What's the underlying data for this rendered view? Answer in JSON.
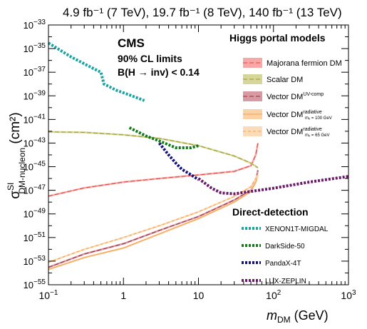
{
  "chart_data": {
    "type": "line",
    "lumi_header": "4.9 fb⁻¹ (7 TeV), 19.7 fb⁻¹ (8 TeV), 140 fb⁻¹ (13 TeV)",
    "experiment": "CMS",
    "subtitle_line1": "90% CL limits",
    "subtitle_line2": "B(H → inv) < 0.14",
    "xlabel": {
      "main": "m",
      "sub": "DM",
      "unit": " (GeV)"
    },
    "ylabel": {
      "main": "σ",
      "sup": "SI",
      "sub": "DM-nucleon",
      "unit": " (cm²)"
    },
    "x_scale": "log",
    "y_scale": "log",
    "xlim": [
      0.1,
      1000
    ],
    "ylim": [
      1e-55,
      1e-33
    ],
    "x_ticks": [
      {
        "value": 0.1,
        "base": "10",
        "exp": "−1"
      },
      {
        "value": 1,
        "base": "1",
        "exp": ""
      },
      {
        "value": 10,
        "base": "10",
        "exp": ""
      },
      {
        "value": 100,
        "base": "10",
        "exp": "2"
      },
      {
        "value": 1000,
        "base": "10",
        "exp": "3"
      }
    ],
    "y_ticks": [
      {
        "value": -55,
        "base": "10",
        "exp": "−55"
      },
      {
        "value": -53,
        "base": "10",
        "exp": "−53"
      },
      {
        "value": -51,
        "base": "10",
        "exp": "−51"
      },
      {
        "value": -49,
        "base": "10",
        "exp": "−49"
      },
      {
        "value": -47,
        "base": "10",
        "exp": "−47"
      },
      {
        "value": -45,
        "base": "10",
        "exp": "−45"
      },
      {
        "value": -43,
        "base": "10",
        "exp": "−43"
      },
      {
        "value": -41,
        "base": "10",
        "exp": "−41"
      },
      {
        "value": -39,
        "base": "10",
        "exp": "−39"
      },
      {
        "value": -37,
        "base": "10",
        "exp": "−37"
      },
      {
        "value": -35,
        "base": "10",
        "exp": "−35"
      },
      {
        "value": -33,
        "base": "10",
        "exp": "−33"
      }
    ],
    "legend_higgs_title": "Higgs portal models",
    "legend_dd_title": "Direct-detection",
    "legend_placement": "right",
    "grid": false,
    "higgs_series": [
      {
        "name": "Majorana fermion DM",
        "name_sup": "",
        "name_sub": "",
        "color": "#e8413c",
        "band": "#f7a8a6",
        "dash": "6,3",
        "points": [
          [
            0.1,
            3.2e-48
          ],
          [
            0.3,
            1.6e-47
          ],
          [
            1,
            5e-47
          ],
          [
            3,
            1e-46
          ],
          [
            10,
            2e-46
          ],
          [
            30,
            4e-46
          ],
          [
            50,
            1.2e-45
          ],
          [
            58,
            1e-44
          ],
          [
            62,
            1e-43
          ]
        ]
      },
      {
        "name": "Scalar DM",
        "name_sup": "",
        "name_sub": "",
        "color": "#9a9a2a",
        "band": "#d6d69a",
        "dash": "6,3",
        "points": [
          [
            0.1,
            9e-43
          ],
          [
            0.3,
            8e-43
          ],
          [
            1,
            5e-43
          ],
          [
            3,
            2.5e-43
          ],
          [
            10,
            6e-44
          ],
          [
            30,
            8e-45
          ],
          [
            50,
            2e-45
          ],
          [
            62,
            8e-46
          ]
        ]
      },
      {
        "name": "Vector DM",
        "name_sup": "UV-comp",
        "name_sub": "",
        "color": "#9b2a3a",
        "band": "#d79aa2",
        "dash": "6,3",
        "points": [
          [
            0.1,
            3e-54
          ],
          [
            0.3,
            4e-53
          ],
          [
            1,
            3e-52
          ],
          [
            3,
            4e-51
          ],
          [
            10,
            6e-50
          ],
          [
            30,
            1.5e-48
          ],
          [
            50,
            1e-47
          ],
          [
            58,
            6e-47
          ],
          [
            62,
            5e-46
          ]
        ]
      },
      {
        "name": "Vector DM",
        "name_sup": "radiative",
        "name_sub": "mₒ = 100 GeV",
        "color": "#f5a04a",
        "band": "#fbd2a6",
        "dash": "",
        "points": [
          [
            0.1,
            2e-54
          ],
          [
            0.3,
            2e-53
          ],
          [
            1,
            1.3e-52
          ],
          [
            3,
            2e-51
          ],
          [
            10,
            4e-50
          ],
          [
            30,
            1e-48
          ],
          [
            50,
            8e-48
          ],
          [
            58,
            5e-47
          ],
          [
            62,
            2e-46
          ]
        ]
      },
      {
        "name": "Vector DM",
        "name_sup": "radiative",
        "name_sub": "mₒ = 65 GeV",
        "color": "#f5a04a",
        "band": "#fcdcb8",
        "dash": "4,3",
        "points": [
          [
            0.1,
            8e-54
          ],
          [
            0.3,
            1e-52
          ],
          [
            1,
            1e-51
          ],
          [
            3,
            1e-50
          ],
          [
            10,
            1.5e-49
          ],
          [
            30,
            3e-48
          ],
          [
            50,
            2e-47
          ],
          [
            58,
            1e-46
          ],
          [
            62,
            2e-46
          ]
        ]
      }
    ],
    "dd_series": [
      {
        "name": "XENON1T-MIGDAL",
        "color": "#1aa3a3",
        "points": [
          [
            0.1,
            3e-35
          ],
          [
            0.2,
            2e-36
          ],
          [
            0.4,
            2e-37
          ],
          [
            0.5,
            1e-37
          ],
          [
            0.55,
            1e-38
          ],
          [
            0.8,
            3e-39
          ],
          [
            1.2,
            1.2e-39
          ],
          [
            1.9,
            4e-40
          ]
        ]
      },
      {
        "name": "DarkSide-50",
        "color": "#137a1a",
        "points": [
          [
            1.2,
            2e-42
          ],
          [
            2,
            4e-43
          ],
          [
            3,
            1.5e-43
          ],
          [
            5,
            4e-44
          ],
          [
            8,
            4e-44
          ],
          [
            10,
            6e-44
          ]
        ]
      },
      {
        "name": "PandaX-4T",
        "color": "#13137a",
        "points": [
          [
            3,
            1e-43
          ],
          [
            4,
            1e-44
          ],
          [
            5,
            2e-45
          ],
          [
            6,
            6e-46
          ],
          [
            8,
            2e-46
          ],
          [
            10,
            8e-47
          ]
        ]
      },
      {
        "name": "LUX-ZEPLIN",
        "color": "#6a1a6a",
        "points": [
          [
            10,
            1e-46
          ],
          [
            15,
            1.5e-47
          ],
          [
            20,
            6e-48
          ],
          [
            30,
            5e-48
          ],
          [
            50,
            8e-48
          ],
          [
            100,
            1.5e-47
          ],
          [
            300,
            5e-47
          ],
          [
            1000,
            1.5e-46
          ]
        ]
      }
    ]
  }
}
